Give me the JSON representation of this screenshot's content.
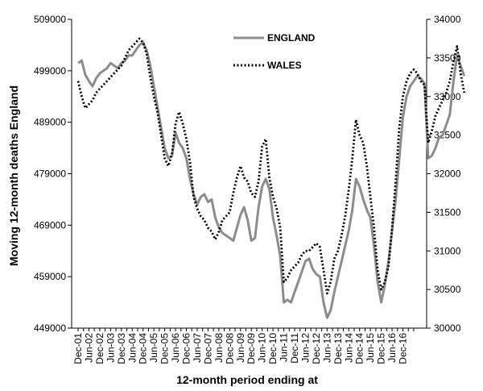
{
  "chart_data": {
    "type": "line",
    "ylabel": "Moving 12-month deaths England",
    "xlabel": "12-month period ending at",
    "y_left": {
      "min": 449000,
      "max": 509000,
      "ticks": [
        "449000",
        "459000",
        "469000",
        "479000",
        "489000",
        "499000",
        "509000"
      ]
    },
    "y_right": {
      "min": 30000,
      "max": 34000,
      "ticks": [
        "30000",
        "30500",
        "31000",
        "31500",
        "32000",
        "32500",
        "33000",
        "33500",
        "34000"
      ]
    },
    "x_labels": [
      "Dec-01",
      "Jun-02",
      "Dec-02",
      "Jun-03",
      "Dec-03",
      "Jun-04",
      "Dec-04",
      "Jun-05",
      "Dec-05",
      "Jun-06",
      "Dec-06",
      "Jun-07",
      "Dec-07",
      "Jun-08",
      "Dec-08",
      "Jun-09",
      "Dec-09",
      "Jun-10",
      "Dec-10",
      "Jun-11",
      "Dec-11",
      "Jun-12",
      "Dec-12",
      "Jun-13",
      "Dec-13",
      "Jun-14",
      "Dec-14",
      "Jun-15",
      "Dec-15",
      "Jun-16",
      "Dec-16"
    ],
    "legend": [
      {
        "name": "ENGLAND",
        "color": "#8c8c8c",
        "style": "solid"
      },
      {
        "name": "WALES",
        "color": "#000000",
        "style": "dotted"
      }
    ],
    "series": [
      {
        "name": "ENGLAND",
        "axis": "left",
        "color": "#8c8c8c",
        "points": [
          [
            0,
            500500
          ],
          [
            2,
            501000
          ],
          [
            4,
            498200
          ],
          [
            6,
            497000
          ],
          [
            8,
            496000
          ],
          [
            10,
            497500
          ],
          [
            12,
            498500
          ],
          [
            14,
            499000
          ],
          [
            16,
            499500
          ],
          [
            18,
            500500
          ],
          [
            20,
            500000
          ],
          [
            22,
            499500
          ],
          [
            24,
            500500
          ],
          [
            26,
            501000
          ],
          [
            28,
            502000
          ],
          [
            30,
            502000
          ],
          [
            32,
            503000
          ],
          [
            34,
            504000
          ],
          [
            36,
            504500
          ],
          [
            38,
            503000
          ],
          [
            40,
            500000
          ],
          [
            42,
            496000
          ],
          [
            44,
            492000
          ],
          [
            46,
            488000
          ],
          [
            48,
            484000
          ],
          [
            50,
            482000
          ],
          [
            52,
            482500
          ],
          [
            54,
            487000
          ],
          [
            56,
            485000
          ],
          [
            58,
            484000
          ],
          [
            60,
            482000
          ],
          [
            62,
            478000
          ],
          [
            64,
            475000
          ],
          [
            66,
            473000
          ],
          [
            68,
            474500
          ],
          [
            70,
            475000
          ],
          [
            72,
            473500
          ],
          [
            74,
            474000
          ],
          [
            76,
            470500
          ],
          [
            78,
            468500
          ],
          [
            80,
            467500
          ],
          [
            82,
            467000
          ],
          [
            84,
            466500
          ],
          [
            86,
            466000
          ],
          [
            88,
            468500
          ],
          [
            90,
            471000
          ],
          [
            92,
            472500
          ],
          [
            94,
            470000
          ],
          [
            96,
            466000
          ],
          [
            98,
            466500
          ],
          [
            100,
            472500
          ],
          [
            102,
            476500
          ],
          [
            104,
            478000
          ],
          [
            106,
            476000
          ],
          [
            108,
            470500
          ],
          [
            110,
            467000
          ],
          [
            112,
            463000
          ],
          [
            114,
            454000
          ],
          [
            116,
            454500
          ],
          [
            118,
            454000
          ],
          [
            120,
            456000
          ],
          [
            122,
            458000
          ],
          [
            124,
            460000
          ],
          [
            126,
            462000
          ],
          [
            128,
            462500
          ],
          [
            130,
            460500
          ],
          [
            132,
            459500
          ],
          [
            134,
            459000
          ],
          [
            136,
            454000
          ],
          [
            138,
            451000
          ],
          [
            140,
            452500
          ],
          [
            142,
            456000
          ],
          [
            144,
            459000
          ],
          [
            146,
            462000
          ],
          [
            148,
            465000
          ],
          [
            150,
            468000
          ],
          [
            152,
            472000
          ],
          [
            154,
            478000
          ],
          [
            156,
            476500
          ],
          [
            158,
            474000
          ],
          [
            160,
            472000
          ],
          [
            162,
            470500
          ],
          [
            164,
            465000
          ],
          [
            166,
            458000
          ],
          [
            168,
            454000
          ],
          [
            170,
            457500
          ],
          [
            172,
            462000
          ],
          [
            174,
            468000
          ],
          [
            176,
            474000
          ],
          [
            178,
            482000
          ],
          [
            180,
            490000
          ],
          [
            182,
            494000
          ],
          [
            184,
            496000
          ],
          [
            186,
            497000
          ],
          [
            188,
            498000
          ],
          [
            190,
            497500
          ],
          [
            192,
            496500
          ],
          [
            194,
            482000
          ],
          [
            196,
            482500
          ],
          [
            198,
            484000
          ],
          [
            200,
            486000
          ],
          [
            202,
            486500
          ],
          [
            204,
            488500
          ],
          [
            206,
            490500
          ],
          [
            208,
            497000
          ],
          [
            210,
            502000
          ],
          [
            212,
            500000
          ],
          [
            214,
            498000
          ]
        ]
      },
      {
        "name": "WALES",
        "axis": "right",
        "color": "#000000",
        "points": [
          [
            0,
            33200
          ],
          [
            2,
            33000
          ],
          [
            4,
            32850
          ],
          [
            6,
            32900
          ],
          [
            8,
            32950
          ],
          [
            10,
            33050
          ],
          [
            12,
            33100
          ],
          [
            14,
            33150
          ],
          [
            16,
            33200
          ],
          [
            18,
            33250
          ],
          [
            20,
            33300
          ],
          [
            22,
            33350
          ],
          [
            24,
            33400
          ],
          [
            26,
            33500
          ],
          [
            28,
            33600
          ],
          [
            30,
            33650
          ],
          [
            32,
            33700
          ],
          [
            34,
            33750
          ],
          [
            36,
            33700
          ],
          [
            38,
            33550
          ],
          [
            40,
            33250
          ],
          [
            42,
            33000
          ],
          [
            44,
            32800
          ],
          [
            46,
            32500
          ],
          [
            48,
            32200
          ],
          [
            50,
            32100
          ],
          [
            52,
            32250
          ],
          [
            54,
            32650
          ],
          [
            56,
            32800
          ],
          [
            58,
            32650
          ],
          [
            60,
            32450
          ],
          [
            62,
            32150
          ],
          [
            64,
            31700
          ],
          [
            66,
            31550
          ],
          [
            68,
            31450
          ],
          [
            70,
            31400
          ],
          [
            72,
            31300
          ],
          [
            74,
            31250
          ],
          [
            76,
            31150
          ],
          [
            78,
            31250
          ],
          [
            80,
            31400
          ],
          [
            82,
            31450
          ],
          [
            84,
            31500
          ],
          [
            86,
            31750
          ],
          [
            88,
            31950
          ],
          [
            90,
            32100
          ],
          [
            92,
            31950
          ],
          [
            94,
            31900
          ],
          [
            96,
            31750
          ],
          [
            98,
            31700
          ],
          [
            100,
            31900
          ],
          [
            102,
            32350
          ],
          [
            104,
            32450
          ],
          [
            106,
            31950
          ],
          [
            108,
            31700
          ],
          [
            110,
            31550
          ],
          [
            112,
            31300
          ],
          [
            114,
            30600
          ],
          [
            116,
            30650
          ],
          [
            118,
            30750
          ],
          [
            120,
            30800
          ],
          [
            122,
            30850
          ],
          [
            124,
            30950
          ],
          [
            126,
            31000
          ],
          [
            128,
            31000
          ],
          [
            130,
            31050
          ],
          [
            132,
            31100
          ],
          [
            134,
            31050
          ],
          [
            136,
            30750
          ],
          [
            138,
            30450
          ],
          [
            140,
            30600
          ],
          [
            142,
            30900
          ],
          [
            144,
            31000
          ],
          [
            146,
            31200
          ],
          [
            148,
            31450
          ],
          [
            150,
            31800
          ],
          [
            152,
            32200
          ],
          [
            154,
            32700
          ],
          [
            156,
            32500
          ],
          [
            158,
            32400
          ],
          [
            160,
            32100
          ],
          [
            162,
            31700
          ],
          [
            164,
            31300
          ],
          [
            166,
            30750
          ],
          [
            168,
            30500
          ],
          [
            170,
            30600
          ],
          [
            172,
            30800
          ],
          [
            174,
            31300
          ],
          [
            176,
            31900
          ],
          [
            178,
            32600
          ],
          [
            180,
            33000
          ],
          [
            182,
            33200
          ],
          [
            184,
            33300
          ],
          [
            186,
            33350
          ],
          [
            188,
            33300
          ],
          [
            190,
            33200
          ],
          [
            192,
            33150
          ],
          [
            194,
            32400
          ],
          [
            196,
            32550
          ],
          [
            198,
            32750
          ],
          [
            200,
            32850
          ],
          [
            202,
            32950
          ],
          [
            204,
            33050
          ],
          [
            206,
            33200
          ],
          [
            208,
            33450
          ],
          [
            210,
            33650
          ],
          [
            212,
            33300
          ],
          [
            214,
            33050
          ]
        ]
      }
    ]
  }
}
